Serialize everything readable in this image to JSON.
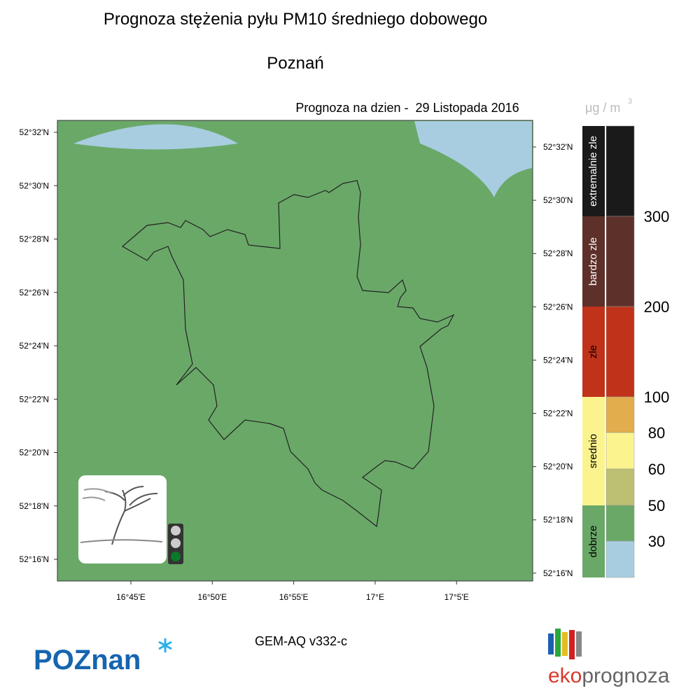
{
  "header": {
    "title": "Prognoza stężenia pyłu PM10 średniego dobowego",
    "city": "Poznań",
    "forecast_date": "Prognoza na dzien -  29 Listopada 2016"
  },
  "map": {
    "lat_labels_left": [
      "52°32'N",
      "52°30'N",
      "52°28'N",
      "52°26'N",
      "52°24'N",
      "52°22'N",
      "52°20'N",
      "52°18'N",
      "52°16'N"
    ],
    "lat_labels_right": [
      "52°32'N",
      "52°30'N",
      "52°28'N",
      "52°26'N",
      "52°24'N",
      "52°22'N",
      "52°20'N",
      "52°18'N",
      "52°16'N"
    ],
    "lon_labels": [
      "16°45'E",
      "16°50'E",
      "16°55'E",
      "17°E",
      "17°5'E"
    ]
  },
  "legend": {
    "unit": "μg / m",
    "unit_exponent": "3",
    "categories": [
      "extremalnie zle",
      "bardzo zle",
      "zle",
      "srednio",
      "dobrze"
    ],
    "thresholds": [
      300,
      200,
      100,
      80,
      60,
      50,
      30
    ]
  },
  "footer": {
    "model": "GEM-AQ v332-c",
    "logo_left": "POZnan",
    "logo_right_prefix": "eko",
    "logo_right_suffix": "prognoza"
  }
}
